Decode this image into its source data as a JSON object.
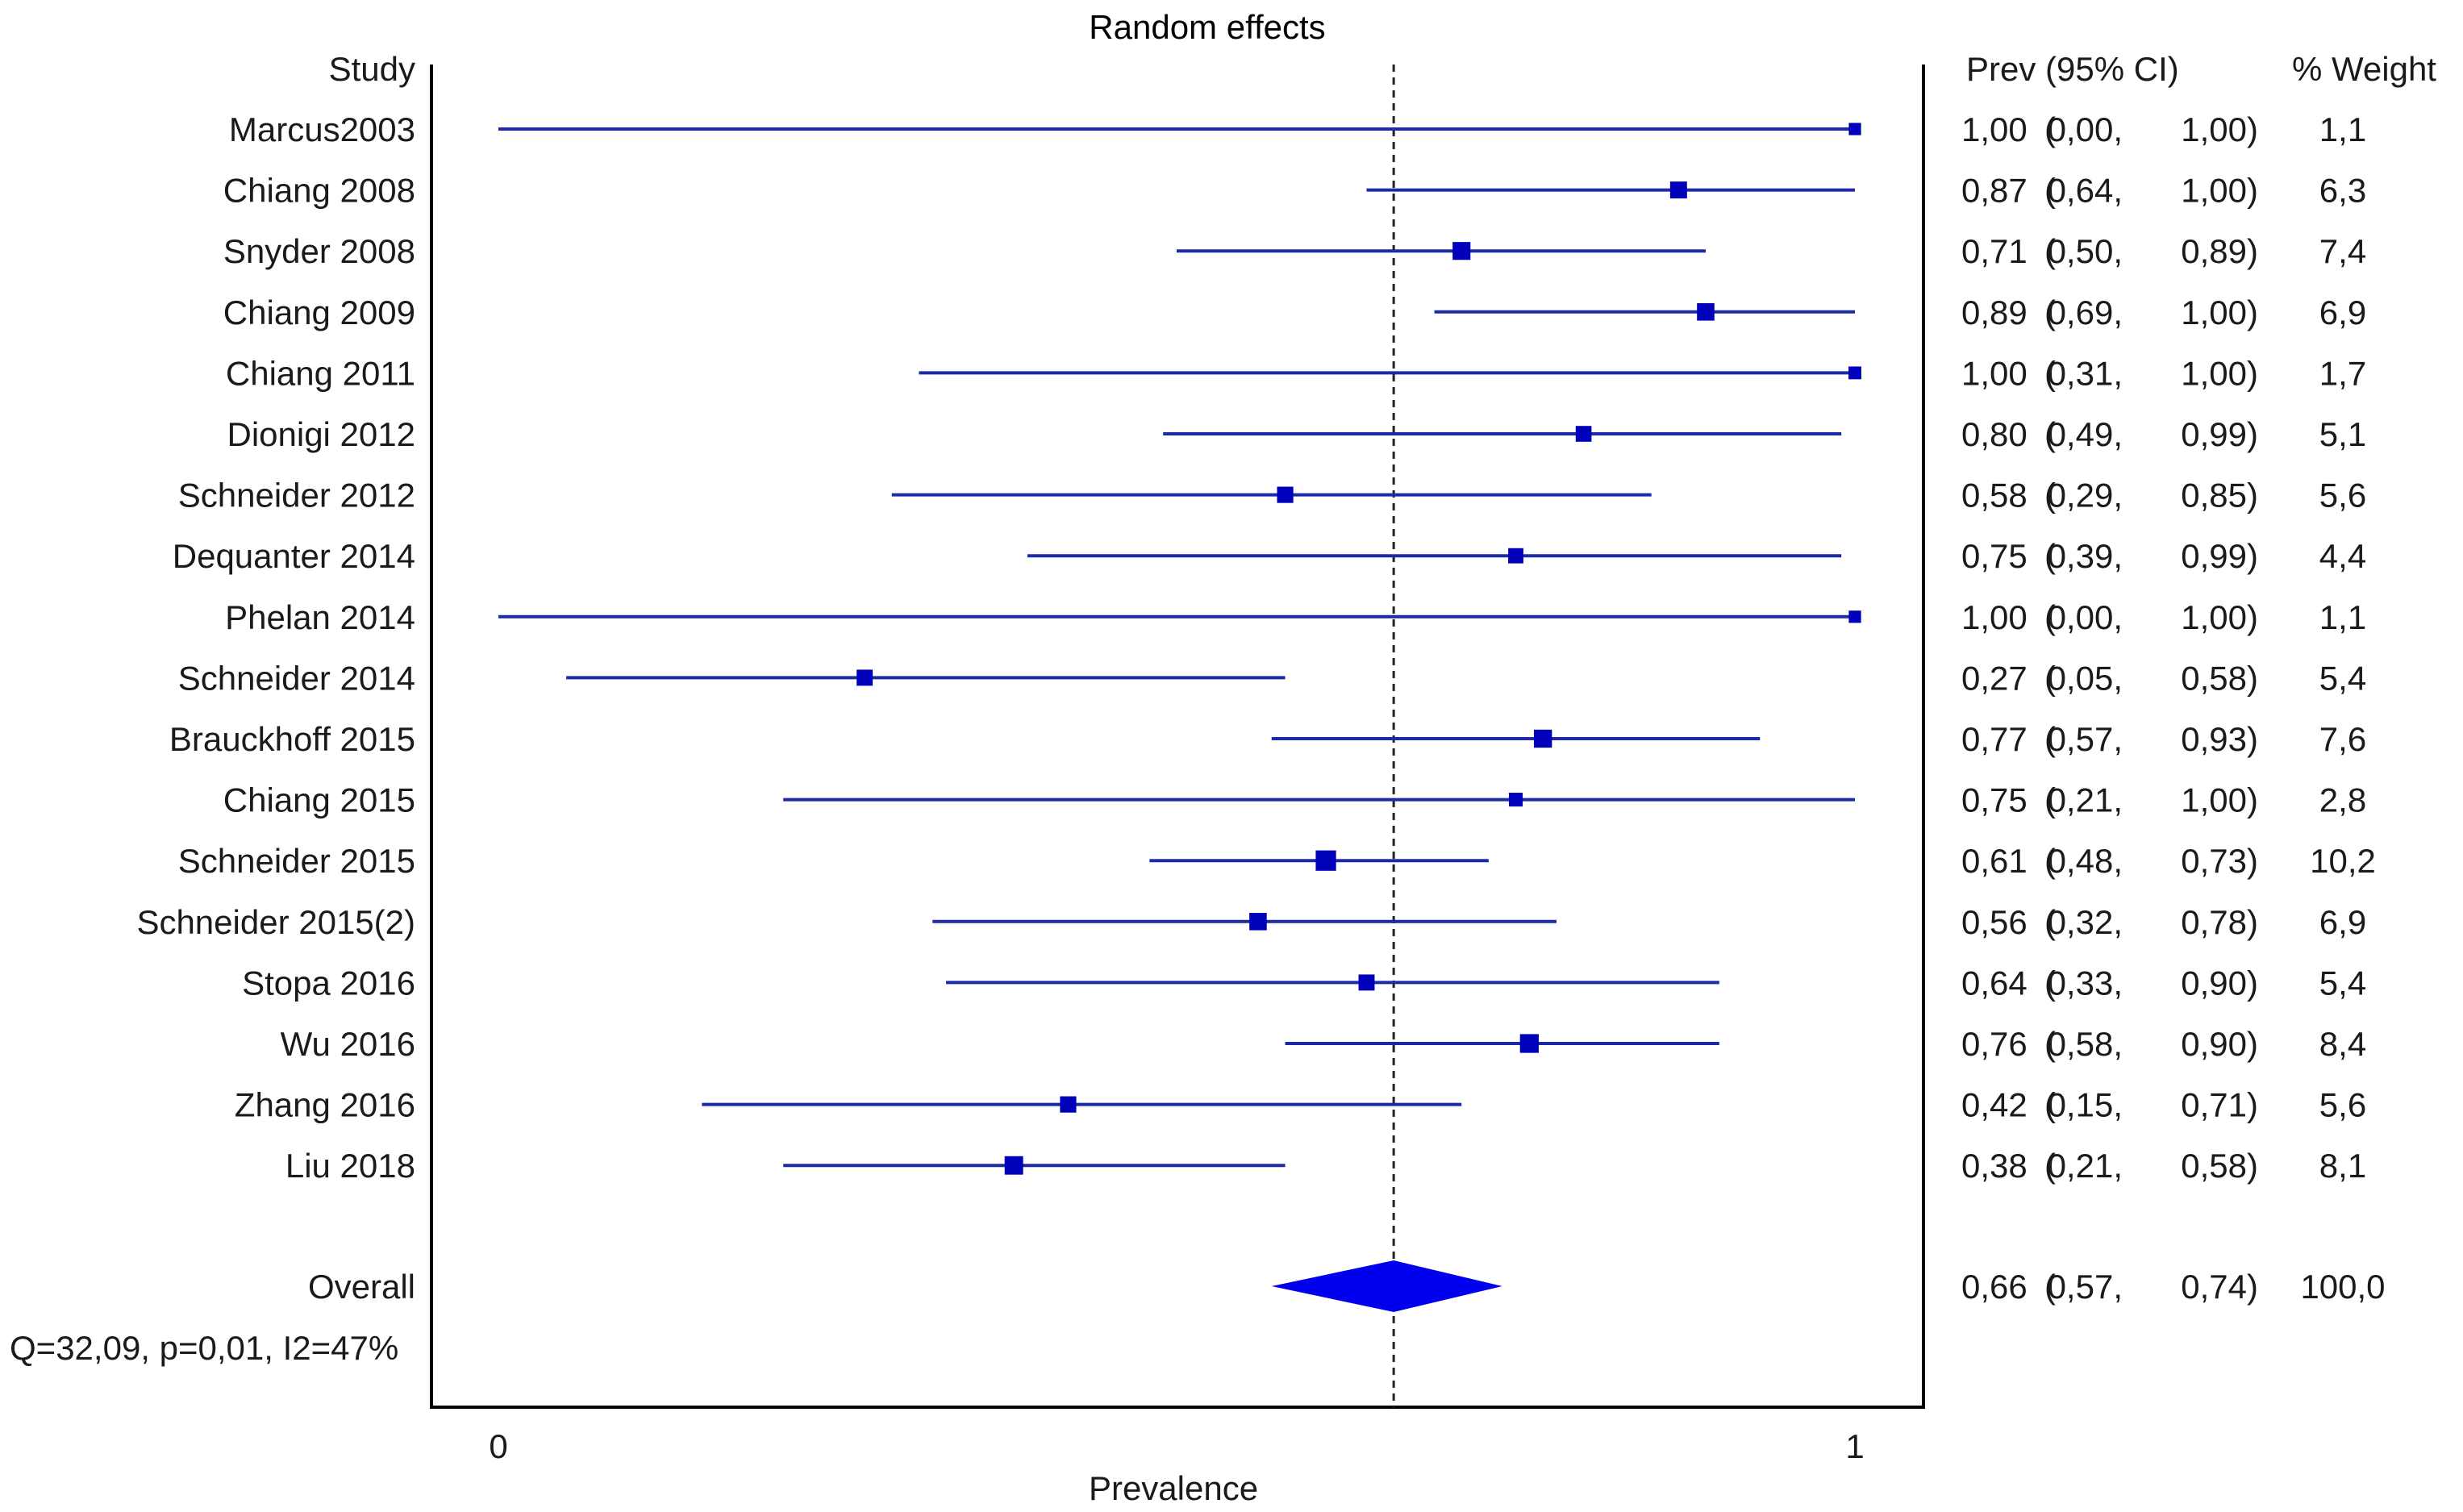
{
  "chart_data": {
    "type": "forest",
    "title": "Random effects",
    "xlabel": "Prevalence",
    "row_header": "Study",
    "estimate_header": "Prev (95% CI)",
    "weight_header": "% Weight",
    "x_ticks": [
      {
        "value": 0,
        "label": "0"
      },
      {
        "value": 1,
        "label": "1"
      }
    ],
    "xlim": [
      0,
      1
    ],
    "reference_line": 0.66,
    "colors": {
      "title": "#333399",
      "marker": "#0000bb",
      "ci_line": "#1c2aa8",
      "diamond": "#0000ee"
    },
    "studies": [
      {
        "name": "Marcus2003",
        "prev": 1.0,
        "lower": 0.0,
        "upper": 1.0,
        "weight": 1.1,
        "prev_text": "1,00",
        "lower_text": "0,00",
        "upper_text": "1,00",
        "weight_text": "1,1"
      },
      {
        "name": "Chiang 2008",
        "prev": 0.87,
        "lower": 0.64,
        "upper": 1.0,
        "weight": 6.3,
        "prev_text": "0,87",
        "lower_text": "0,64",
        "upper_text": "1,00",
        "weight_text": "6,3"
      },
      {
        "name": "Snyder 2008",
        "prev": 0.71,
        "lower": 0.5,
        "upper": 0.89,
        "weight": 7.4,
        "prev_text": "0,71",
        "lower_text": "0,50",
        "upper_text": "0,89",
        "weight_text": "7,4"
      },
      {
        "name": "Chiang 2009",
        "prev": 0.89,
        "lower": 0.69,
        "upper": 1.0,
        "weight": 6.9,
        "prev_text": "0,89",
        "lower_text": "0,69",
        "upper_text": "1,00",
        "weight_text": "6,9"
      },
      {
        "name": "Chiang 2011",
        "prev": 1.0,
        "lower": 0.31,
        "upper": 1.0,
        "weight": 1.7,
        "prev_text": "1,00",
        "lower_text": "0,31",
        "upper_text": "1,00",
        "weight_text": "1,7"
      },
      {
        "name": "Dionigi 2012",
        "prev": 0.8,
        "lower": 0.49,
        "upper": 0.99,
        "weight": 5.1,
        "prev_text": "0,80",
        "lower_text": "0,49",
        "upper_text": "0,99",
        "weight_text": "5,1"
      },
      {
        "name": "Schneider 2012",
        "prev": 0.58,
        "lower": 0.29,
        "upper": 0.85,
        "weight": 5.6,
        "prev_text": "0,58",
        "lower_text": "0,29",
        "upper_text": "0,85",
        "weight_text": "5,6"
      },
      {
        "name": "Dequanter 2014",
        "prev": 0.75,
        "lower": 0.39,
        "upper": 0.99,
        "weight": 4.4,
        "prev_text": "0,75",
        "lower_text": "0,39",
        "upper_text": "0,99",
        "weight_text": "4,4"
      },
      {
        "name": "Phelan 2014",
        "prev": 1.0,
        "lower": 0.0,
        "upper": 1.0,
        "weight": 1.1,
        "prev_text": "1,00",
        "lower_text": "0,00",
        "upper_text": "1,00",
        "weight_text": "1,1"
      },
      {
        "name": "Schneider 2014",
        "prev": 0.27,
        "lower": 0.05,
        "upper": 0.58,
        "weight": 5.4,
        "prev_text": "0,27",
        "lower_text": "0,05",
        "upper_text": "0,58",
        "weight_text": "5,4"
      },
      {
        "name": "Brauckhoff 2015",
        "prev": 0.77,
        "lower": 0.57,
        "upper": 0.93,
        "weight": 7.6,
        "prev_text": "0,77",
        "lower_text": "0,57",
        "upper_text": "0,93",
        "weight_text": "7,6"
      },
      {
        "name": "Chiang 2015",
        "prev": 0.75,
        "lower": 0.21,
        "upper": 1.0,
        "weight": 2.8,
        "prev_text": "0,75",
        "lower_text": "0,21",
        "upper_text": "1,00",
        "weight_text": "2,8"
      },
      {
        "name": "Schneider 2015",
        "prev": 0.61,
        "lower": 0.48,
        "upper": 0.73,
        "weight": 10.2,
        "prev_text": "0,61",
        "lower_text": "0,48",
        "upper_text": "0,73",
        "weight_text": "10,2"
      },
      {
        "name": "Schneider 2015(2)",
        "prev": 0.56,
        "lower": 0.32,
        "upper": 0.78,
        "weight": 6.9,
        "prev_text": "0,56",
        "lower_text": "0,32",
        "upper_text": "0,78",
        "weight_text": "6,9"
      },
      {
        "name": "Stopa 2016",
        "prev": 0.64,
        "lower": 0.33,
        "upper": 0.9,
        "weight": 5.4,
        "prev_text": "0,64",
        "lower_text": "0,33",
        "upper_text": "0,90",
        "weight_text": "5,4"
      },
      {
        "name": "Wu 2016",
        "prev": 0.76,
        "lower": 0.58,
        "upper": 0.9,
        "weight": 8.4,
        "prev_text": "0,76",
        "lower_text": "0,58",
        "upper_text": "0,90",
        "weight_text": "8,4"
      },
      {
        "name": "Zhang 2016",
        "prev": 0.42,
        "lower": 0.15,
        "upper": 0.71,
        "weight": 5.6,
        "prev_text": "0,42",
        "lower_text": "0,15",
        "upper_text": "0,71",
        "weight_text": "5,6"
      },
      {
        "name": "Liu 2018",
        "prev": 0.38,
        "lower": 0.21,
        "upper": 0.58,
        "weight": 8.1,
        "prev_text": "0,38",
        "lower_text": "0,21",
        "upper_text": "0,58",
        "weight_text": "8,1"
      }
    ],
    "overall": {
      "name": "Overall",
      "prev": 0.66,
      "lower": 0.57,
      "upper": 0.74,
      "weight": 100.0,
      "prev_text": "0,66",
      "lower_text": "0,57",
      "upper_text": "0,74",
      "weight_text": "100,0"
    },
    "heterogeneity": "Q=32,09, p=0,01, I2=47%"
  }
}
